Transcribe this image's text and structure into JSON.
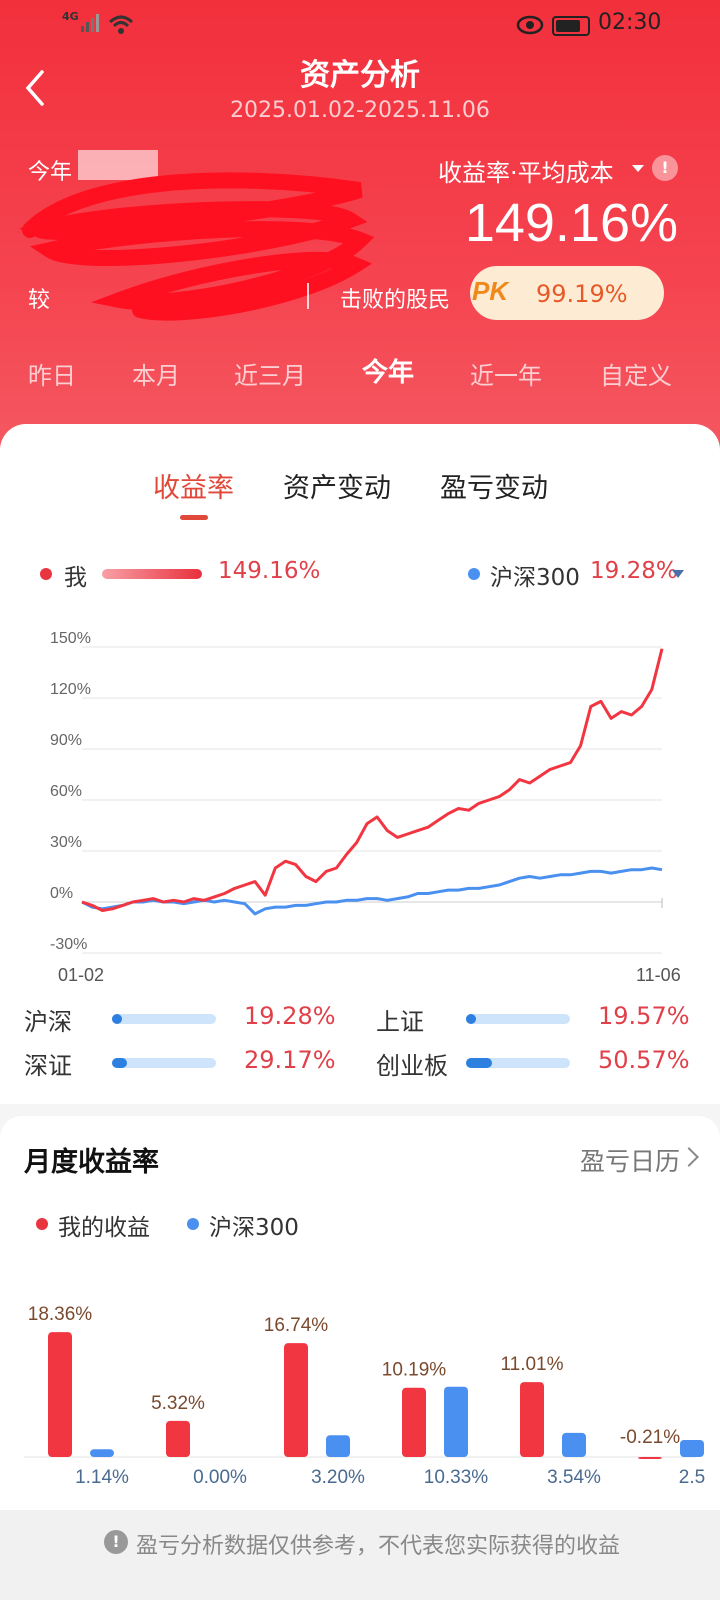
{
  "status": {
    "network": "4G",
    "time": "02:30"
  },
  "header": {
    "title": "资产分析",
    "subtitle": "2025.01.02-2025.11.06"
  },
  "summary": {
    "year_label": "今年",
    "compare_label": "较",
    "rate_label": "收益率·平均成本",
    "rate_value": "149.16%",
    "beat_label": "击败的股民",
    "pk_text": "PK",
    "pk_value": "99.19%"
  },
  "period_tabs": [
    {
      "label": "昨日",
      "active": false
    },
    {
      "label": "本月",
      "active": false
    },
    {
      "label": "近三月",
      "active": false
    },
    {
      "label": "今年",
      "active": true
    },
    {
      "label": "近一年",
      "active": false
    },
    {
      "label": "自定义",
      "active": false
    }
  ],
  "sub_tabs": [
    {
      "label": "收益率",
      "active": true
    },
    {
      "label": "资产变动",
      "active": false
    },
    {
      "label": "盈亏变动",
      "active": false
    }
  ],
  "legend": {
    "me_label": "我",
    "me_value": "149.16%",
    "bench_label": "沪深300",
    "bench_value": "19.28%"
  },
  "indices": [
    {
      "name": "沪深",
      "value": "19.28%",
      "fill": 0.0964
    },
    {
      "name": "上证",
      "value": "19.57%",
      "fill": 0.098
    },
    {
      "name": "深证",
      "value": "29.17%",
      "fill": 0.146
    },
    {
      "name": "创业板",
      "value": "50.57%",
      "fill": 0.253
    }
  ],
  "monthly": {
    "title": "月度收益率",
    "link_label": "盈亏日历",
    "legend_mine": "我的收益",
    "legend_bench": "沪深300"
  },
  "footer": {
    "text": "盈亏分析数据仅供参考，不代表您实际获得的收益"
  },
  "colors": {
    "accent": "#f2303c",
    "mine": "#f23641",
    "bench": "#4a90f0"
  },
  "chart_data": [
    {
      "type": "line",
      "y_ticks": [
        "150%",
        "120%",
        "90%",
        "60%",
        "30%",
        "0%",
        "-30%"
      ],
      "ylim": [
        -30,
        150
      ],
      "x_labels": [
        "01-02",
        "11-06"
      ],
      "series": [
        {
          "name": "我",
          "values": [
            0,
            -2,
            -5,
            -4,
            -2,
            0,
            1,
            2,
            0,
            1,
            0,
            2,
            1,
            3,
            5,
            8,
            10,
            12,
            4,
            20,
            24,
            22,
            15,
            12,
            18,
            20,
            28,
            35,
            46,
            50,
            42,
            38,
            40,
            42,
            44,
            48,
            52,
            55,
            54,
            58,
            60,
            62,
            66,
            72,
            70,
            74,
            78,
            80,
            82,
            92,
            115,
            118,
            108,
            112,
            110,
            115,
            125,
            149
          ]
        },
        {
          "name": "沪深300",
          "values": [
            0,
            -3,
            -4,
            -3,
            -2,
            0,
            0,
            1,
            0,
            0,
            -1,
            0,
            1,
            0,
            1,
            0,
            -1,
            -7,
            -4,
            -3,
            -3,
            -2,
            -2,
            -1,
            0,
            0,
            1,
            1,
            2,
            2,
            1,
            2,
            3,
            5,
            5,
            6,
            7,
            7,
            8,
            8,
            9,
            10,
            12,
            14,
            15,
            14,
            15,
            16,
            16,
            17,
            18,
            18,
            17,
            18,
            19,
            19,
            20,
            19
          ]
        }
      ]
    },
    {
      "type": "bar",
      "series": [
        {
          "name": "我的收益",
          "values": [
            18.36,
            5.32,
            16.74,
            10.19,
            11.01,
            -0.21
          ],
          "labels": [
            "18.36%",
            "5.32%",
            "16.74%",
            "10.19%",
            "11.01%",
            "-0.21%"
          ]
        },
        {
          "name": "沪深300",
          "values": [
            1.14,
            0.0,
            3.2,
            10.33,
            3.54,
            2.5
          ],
          "labels": [
            "1.14%",
            "0.00%",
            "3.20%",
            "10.33%",
            "3.54%",
            "2.5"
          ]
        }
      ]
    }
  ]
}
